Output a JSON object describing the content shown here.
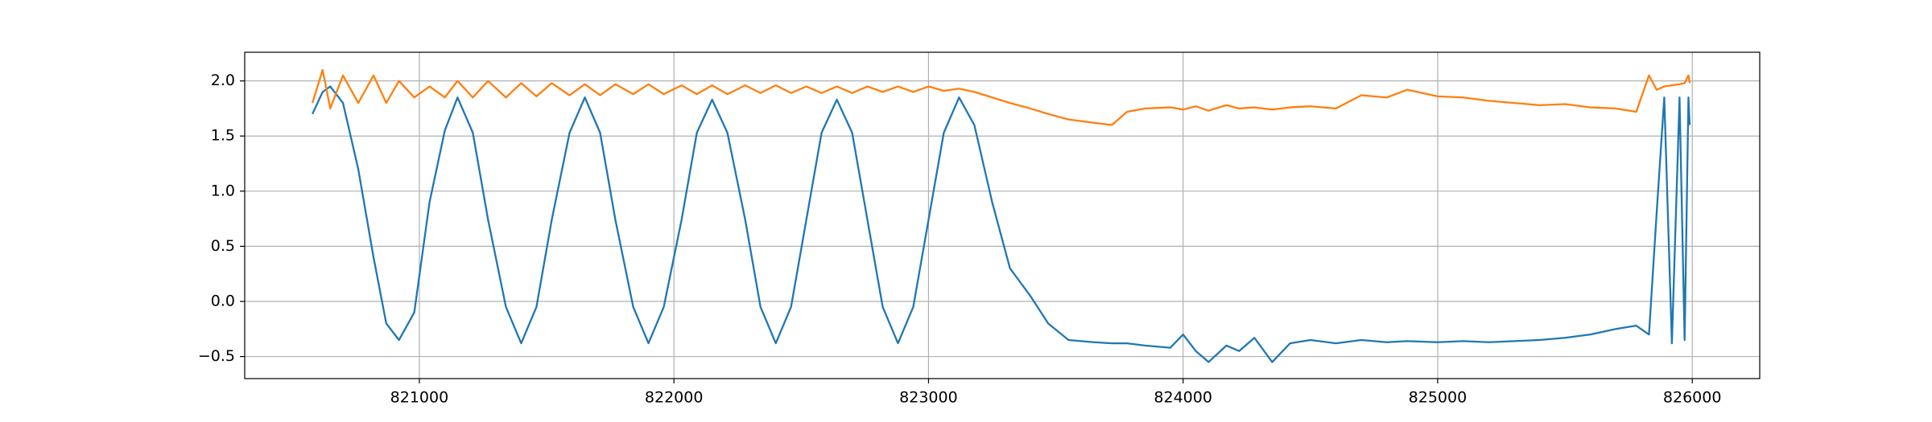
{
  "chart_data": {
    "type": "line",
    "x": [
      820580,
      820620,
      820650,
      820700,
      820760,
      820820,
      820870,
      820920,
      820980,
      821040,
      821100,
      821150,
      821210,
      821270,
      821340,
      821400,
      821460,
      821520,
      821590,
      821650,
      821710,
      821770,
      821840,
      821900,
      821960,
      822030,
      822090,
      822150,
      822210,
      822280,
      822340,
      822400,
      822460,
      822520,
      822580,
      822640,
      822700,
      822760,
      822820,
      822880,
      822940,
      823000,
      823060,
      823120,
      823180,
      823250,
      823320,
      823400,
      823470,
      823550,
      823650,
      823720,
      823780,
      823850,
      823950,
      824000,
      824050,
      824100,
      824170,
      824220,
      824280,
      824350,
      824420,
      824500,
      824600,
      824700,
      824800,
      824880,
      825000,
      825100,
      825200,
      825300,
      825400,
      825500,
      825600,
      825700,
      825780,
      825830,
      825860,
      825890,
      825920,
      825950,
      825970,
      825985,
      825990
    ],
    "series": [
      {
        "color": "#1f77b4",
        "values": [
          1.7,
          1.9,
          1.95,
          1.8,
          1.2,
          0.4,
          -0.2,
          -0.35,
          -0.1,
          0.9,
          1.55,
          1.85,
          1.53,
          0.74,
          -0.05,
          -0.38,
          -0.05,
          0.74,
          1.53,
          1.85,
          1.53,
          0.74,
          -0.05,
          -0.38,
          -0.05,
          0.74,
          1.53,
          1.83,
          1.53,
          0.74,
          -0.05,
          -0.38,
          -0.05,
          0.74,
          1.53,
          1.83,
          1.53,
          0.74,
          -0.05,
          -0.38,
          -0.05,
          0.74,
          1.53,
          1.85,
          1.6,
          0.9,
          0.3,
          0.05,
          -0.2,
          -0.35,
          -0.37,
          -0.38,
          -0.38,
          -0.4,
          -0.42,
          -0.3,
          -0.45,
          -0.55,
          -0.4,
          -0.45,
          -0.33,
          -0.55,
          -0.38,
          -0.35,
          -0.38,
          -0.35,
          -0.37,
          -0.36,
          -0.37,
          -0.36,
          -0.37,
          -0.36,
          -0.35,
          -0.33,
          -0.3,
          -0.25,
          -0.22,
          -0.3,
          0.8,
          1.85,
          -0.38,
          1.85,
          -0.35,
          1.85,
          1.6
        ]
      },
      {
        "color": "#ff7f0e",
        "values": [
          1.8,
          2.1,
          1.75,
          2.05,
          1.8,
          2.05,
          1.8,
          2.0,
          1.85,
          1.95,
          1.85,
          2.0,
          1.85,
          2.0,
          1.85,
          1.98,
          1.86,
          1.98,
          1.87,
          1.97,
          1.87,
          1.97,
          1.88,
          1.97,
          1.88,
          1.96,
          1.88,
          1.96,
          1.88,
          1.96,
          1.89,
          1.96,
          1.89,
          1.95,
          1.89,
          1.95,
          1.89,
          1.95,
          1.9,
          1.95,
          1.9,
          1.95,
          1.91,
          1.93,
          1.9,
          1.85,
          1.8,
          1.75,
          1.7,
          1.65,
          1.62,
          1.6,
          1.72,
          1.75,
          1.76,
          1.74,
          1.77,
          1.73,
          1.78,
          1.75,
          1.76,
          1.74,
          1.76,
          1.77,
          1.75,
          1.87,
          1.85,
          1.92,
          1.86,
          1.85,
          1.82,
          1.8,
          1.78,
          1.79,
          1.76,
          1.75,
          1.72,
          2.05,
          1.92,
          1.95,
          1.96,
          1.97,
          1.98,
          2.05,
          1.98
        ]
      }
    ],
    "xlim": [
      820314,
      826265
    ],
    "xticks": [
      821000,
      822000,
      823000,
      824000,
      825000,
      826000
    ],
    "ylim": [
      -0.7,
      2.26
    ],
    "yticks": [
      {
        "value": -0.5,
        "label": "−0.5"
      },
      {
        "value": 0,
        "label": "0.0"
      },
      0.5,
      {
        "value": 1,
        "label": "1.0"
      },
      1.5,
      {
        "value": 2,
        "label": "2.0"
      }
    ],
    "grid": true
  }
}
